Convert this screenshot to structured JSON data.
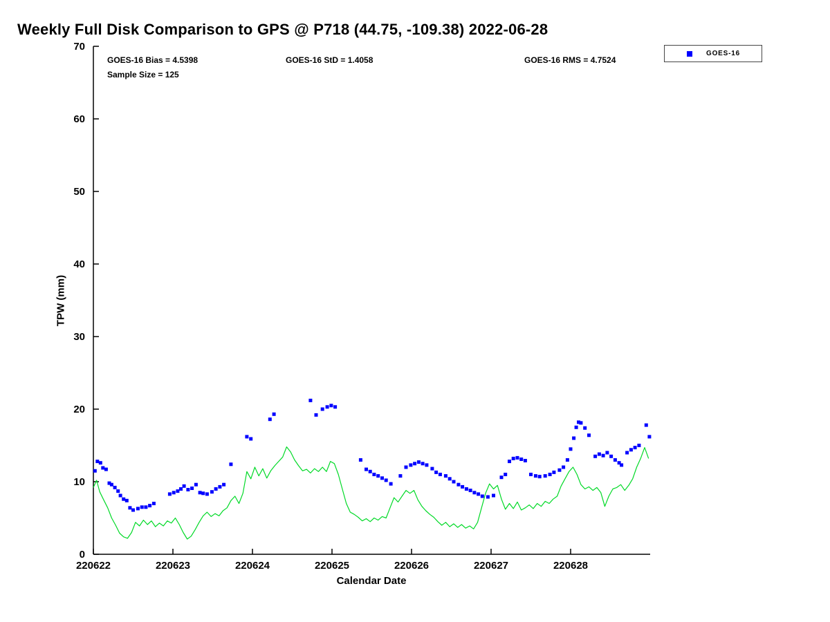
{
  "chart_data": {
    "type": "scatter",
    "title": "Weekly Full Disk Comparison to GPS @ P718 (44.75, -109.38) 2022-06-28",
    "xlabel": "Calendar Date",
    "ylabel": "TPW (mm)",
    "ylim": [
      0,
      70
    ],
    "xlim_days": [
      0,
      7
    ],
    "x_tick_labels": [
      "220622",
      "220623",
      "220624",
      "220625",
      "220626",
      "220627",
      "220628"
    ],
    "y_tick_values": [
      0,
      10,
      20,
      30,
      40,
      50,
      60,
      70
    ],
    "grid": false,
    "legend_position": "top-right-outside",
    "annotations": {
      "bias": "GOES-16 Bias = 4.5398",
      "std": "GOES-16 StD = 1.4058",
      "rms": "GOES-16 RMS = 4.7524",
      "sample_size": "Sample Size = 125"
    },
    "legend": [
      {
        "label": "GOES-16",
        "marker_color": "#0000ff",
        "marker": "square"
      }
    ],
    "colors": {
      "scatter": "#0000ff",
      "line": "#00d926",
      "axis": "#000000",
      "background": "#ffffff"
    },
    "series": [
      {
        "name": "GOES-16",
        "type": "scatter",
        "points": [
          [
            0.02,
            11.5
          ],
          [
            0.05,
            12.8
          ],
          [
            0.09,
            12.6
          ],
          [
            0.12,
            11.9
          ],
          [
            0.16,
            11.7
          ],
          [
            0.2,
            9.8
          ],
          [
            0.23,
            9.6
          ],
          [
            0.27,
            9.2
          ],
          [
            0.31,
            8.7
          ],
          [
            0.34,
            8.1
          ],
          [
            0.38,
            7.6
          ],
          [
            0.42,
            7.4
          ],
          [
            0.46,
            6.4
          ],
          [
            0.5,
            6.1
          ],
          [
            0.56,
            6.3
          ],
          [
            0.61,
            6.5
          ],
          [
            0.66,
            6.5
          ],
          [
            0.71,
            6.7
          ],
          [
            0.76,
            7.0
          ],
          [
            0.96,
            8.3
          ],
          [
            1.01,
            8.5
          ],
          [
            1.06,
            8.7
          ],
          [
            1.1,
            9.0
          ],
          [
            1.14,
            9.4
          ],
          [
            1.19,
            8.9
          ],
          [
            1.24,
            9.1
          ],
          [
            1.29,
            9.6
          ],
          [
            1.34,
            8.5
          ],
          [
            1.38,
            8.4
          ],
          [
            1.43,
            8.3
          ],
          [
            1.49,
            8.6
          ],
          [
            1.54,
            9.0
          ],
          [
            1.59,
            9.3
          ],
          [
            1.64,
            9.6
          ],
          [
            1.73,
            12.4
          ],
          [
            1.93,
            16.2
          ],
          [
            1.98,
            15.9
          ],
          [
            2.22,
            18.6
          ],
          [
            2.27,
            19.3
          ],
          [
            2.73,
            21.2
          ],
          [
            2.8,
            19.2
          ],
          [
            2.88,
            20.0
          ],
          [
            2.94,
            20.3
          ],
          [
            2.99,
            20.5
          ],
          [
            3.04,
            20.3
          ],
          [
            3.36,
            13.0
          ],
          [
            3.43,
            11.7
          ],
          [
            3.48,
            11.4
          ],
          [
            3.53,
            11.0
          ],
          [
            3.58,
            10.8
          ],
          [
            3.63,
            10.5
          ],
          [
            3.68,
            10.2
          ],
          [
            3.74,
            9.7
          ],
          [
            3.86,
            10.8
          ],
          [
            3.93,
            12.0
          ],
          [
            3.99,
            12.3
          ],
          [
            4.04,
            12.5
          ],
          [
            4.09,
            12.7
          ],
          [
            4.14,
            12.5
          ],
          [
            4.19,
            12.3
          ],
          [
            4.26,
            11.8
          ],
          [
            4.31,
            11.3
          ],
          [
            4.36,
            11.0
          ],
          [
            4.43,
            10.8
          ],
          [
            4.48,
            10.4
          ],
          [
            4.53,
            10.0
          ],
          [
            4.59,
            9.6
          ],
          [
            4.64,
            9.3
          ],
          [
            4.69,
            9.0
          ],
          [
            4.74,
            8.8
          ],
          [
            4.79,
            8.5
          ],
          [
            4.84,
            8.3
          ],
          [
            4.89,
            8.0
          ],
          [
            4.96,
            7.9
          ],
          [
            5.03,
            8.1
          ],
          [
            5.13,
            10.6
          ],
          [
            5.18,
            11.0
          ],
          [
            5.23,
            12.8
          ],
          [
            5.28,
            13.2
          ],
          [
            5.33,
            13.3
          ],
          [
            5.38,
            13.1
          ],
          [
            5.43,
            12.9
          ],
          [
            5.5,
            11.0
          ],
          [
            5.56,
            10.8
          ],
          [
            5.61,
            10.7
          ],
          [
            5.68,
            10.8
          ],
          [
            5.74,
            11.0
          ],
          [
            5.79,
            11.3
          ],
          [
            5.86,
            11.6
          ],
          [
            5.91,
            12.0
          ],
          [
            5.96,
            13.0
          ],
          [
            6.0,
            14.5
          ],
          [
            6.04,
            16.0
          ],
          [
            6.07,
            17.5
          ],
          [
            6.1,
            18.2
          ],
          [
            6.13,
            18.1
          ],
          [
            6.18,
            17.4
          ],
          [
            6.23,
            16.4
          ],
          [
            6.31,
            13.5
          ],
          [
            6.36,
            13.8
          ],
          [
            6.41,
            13.6
          ],
          [
            6.46,
            14.0
          ],
          [
            6.51,
            13.5
          ],
          [
            6.56,
            13.0
          ],
          [
            6.61,
            12.6
          ],
          [
            6.64,
            12.3
          ],
          [
            6.71,
            14.0
          ],
          [
            6.76,
            14.4
          ],
          [
            6.81,
            14.7
          ],
          [
            6.86,
            15.0
          ],
          [
            6.95,
            17.8
          ],
          [
            6.99,
            16.2
          ]
        ]
      },
      {
        "name": "GPS",
        "type": "line",
        "points": [
          [
            0.0,
            9.2
          ],
          [
            0.04,
            10.2
          ],
          [
            0.08,
            8.6
          ],
          [
            0.13,
            7.5
          ],
          [
            0.18,
            6.4
          ],
          [
            0.23,
            5.0
          ],
          [
            0.28,
            4.0
          ],
          [
            0.33,
            2.9
          ],
          [
            0.38,
            2.4
          ],
          [
            0.43,
            2.2
          ],
          [
            0.48,
            3.0
          ],
          [
            0.53,
            4.4
          ],
          [
            0.58,
            3.9
          ],
          [
            0.63,
            4.7
          ],
          [
            0.68,
            4.1
          ],
          [
            0.73,
            4.6
          ],
          [
            0.78,
            3.8
          ],
          [
            0.83,
            4.3
          ],
          [
            0.88,
            3.9
          ],
          [
            0.93,
            4.6
          ],
          [
            0.98,
            4.3
          ],
          [
            1.03,
            5.0
          ],
          [
            1.08,
            4.1
          ],
          [
            1.13,
            3.0
          ],
          [
            1.18,
            2.1
          ],
          [
            1.23,
            2.5
          ],
          [
            1.28,
            3.4
          ],
          [
            1.33,
            4.4
          ],
          [
            1.38,
            5.3
          ],
          [
            1.43,
            5.8
          ],
          [
            1.48,
            5.2
          ],
          [
            1.53,
            5.6
          ],
          [
            1.58,
            5.3
          ],
          [
            1.63,
            6.0
          ],
          [
            1.68,
            6.4
          ],
          [
            1.73,
            7.4
          ],
          [
            1.78,
            8.0
          ],
          [
            1.83,
            7.0
          ],
          [
            1.88,
            8.4
          ],
          [
            1.93,
            11.4
          ],
          [
            1.98,
            10.4
          ],
          [
            2.03,
            12.0
          ],
          [
            2.08,
            10.8
          ],
          [
            2.13,
            11.8
          ],
          [
            2.18,
            10.5
          ],
          [
            2.23,
            11.5
          ],
          [
            2.28,
            12.2
          ],
          [
            2.33,
            12.8
          ],
          [
            2.38,
            13.4
          ],
          [
            2.43,
            14.8
          ],
          [
            2.48,
            14.1
          ],
          [
            2.53,
            13.0
          ],
          [
            2.58,
            12.2
          ],
          [
            2.63,
            11.5
          ],
          [
            2.68,
            11.7
          ],
          [
            2.73,
            11.2
          ],
          [
            2.78,
            11.8
          ],
          [
            2.83,
            11.4
          ],
          [
            2.88,
            12.0
          ],
          [
            2.93,
            11.4
          ],
          [
            2.98,
            12.8
          ],
          [
            3.03,
            12.5
          ],
          [
            3.08,
            11.0
          ],
          [
            3.13,
            9.0
          ],
          [
            3.18,
            7.0
          ],
          [
            3.23,
            5.8
          ],
          [
            3.28,
            5.5
          ],
          [
            3.33,
            5.1
          ],
          [
            3.38,
            4.6
          ],
          [
            3.43,
            4.9
          ],
          [
            3.48,
            4.5
          ],
          [
            3.53,
            5.0
          ],
          [
            3.58,
            4.7
          ],
          [
            3.63,
            5.2
          ],
          [
            3.68,
            5.0
          ],
          [
            3.73,
            6.4
          ],
          [
            3.78,
            7.8
          ],
          [
            3.83,
            7.2
          ],
          [
            3.88,
            8.0
          ],
          [
            3.93,
            8.8
          ],
          [
            3.98,
            8.4
          ],
          [
            4.03,
            8.8
          ],
          [
            4.08,
            7.5
          ],
          [
            4.13,
            6.6
          ],
          [
            4.18,
            6.0
          ],
          [
            4.23,
            5.5
          ],
          [
            4.28,
            5.1
          ],
          [
            4.33,
            4.5
          ],
          [
            4.38,
            4.0
          ],
          [
            4.43,
            4.4
          ],
          [
            4.48,
            3.8
          ],
          [
            4.53,
            4.2
          ],
          [
            4.58,
            3.7
          ],
          [
            4.63,
            4.1
          ],
          [
            4.68,
            3.6
          ],
          [
            4.73,
            3.9
          ],
          [
            4.78,
            3.5
          ],
          [
            4.83,
            4.4
          ],
          [
            4.88,
            6.4
          ],
          [
            4.93,
            8.4
          ],
          [
            4.98,
            9.7
          ],
          [
            5.03,
            9.0
          ],
          [
            5.08,
            9.5
          ],
          [
            5.13,
            7.6
          ],
          [
            5.18,
            6.2
          ],
          [
            5.23,
            7.0
          ],
          [
            5.28,
            6.3
          ],
          [
            5.33,
            7.2
          ],
          [
            5.38,
            6.1
          ],
          [
            5.43,
            6.4
          ],
          [
            5.48,
            6.8
          ],
          [
            5.53,
            6.3
          ],
          [
            5.58,
            7.0
          ],
          [
            5.63,
            6.6
          ],
          [
            5.68,
            7.3
          ],
          [
            5.73,
            7.0
          ],
          [
            5.78,
            7.6
          ],
          [
            5.83,
            8.0
          ],
          [
            5.88,
            9.4
          ],
          [
            5.93,
            10.4
          ],
          [
            5.98,
            11.4
          ],
          [
            6.03,
            12.0
          ],
          [
            6.08,
            11.0
          ],
          [
            6.13,
            9.6
          ],
          [
            6.18,
            9.0
          ],
          [
            6.23,
            9.3
          ],
          [
            6.28,
            8.8
          ],
          [
            6.33,
            9.2
          ],
          [
            6.38,
            8.5
          ],
          [
            6.43,
            6.6
          ],
          [
            6.48,
            8.0
          ],
          [
            6.53,
            9.0
          ],
          [
            6.58,
            9.2
          ],
          [
            6.63,
            9.6
          ],
          [
            6.68,
            8.8
          ],
          [
            6.73,
            9.5
          ],
          [
            6.78,
            10.4
          ],
          [
            6.83,
            12.0
          ],
          [
            6.88,
            13.2
          ],
          [
            6.93,
            14.7
          ],
          [
            6.98,
            13.2
          ]
        ]
      }
    ]
  }
}
